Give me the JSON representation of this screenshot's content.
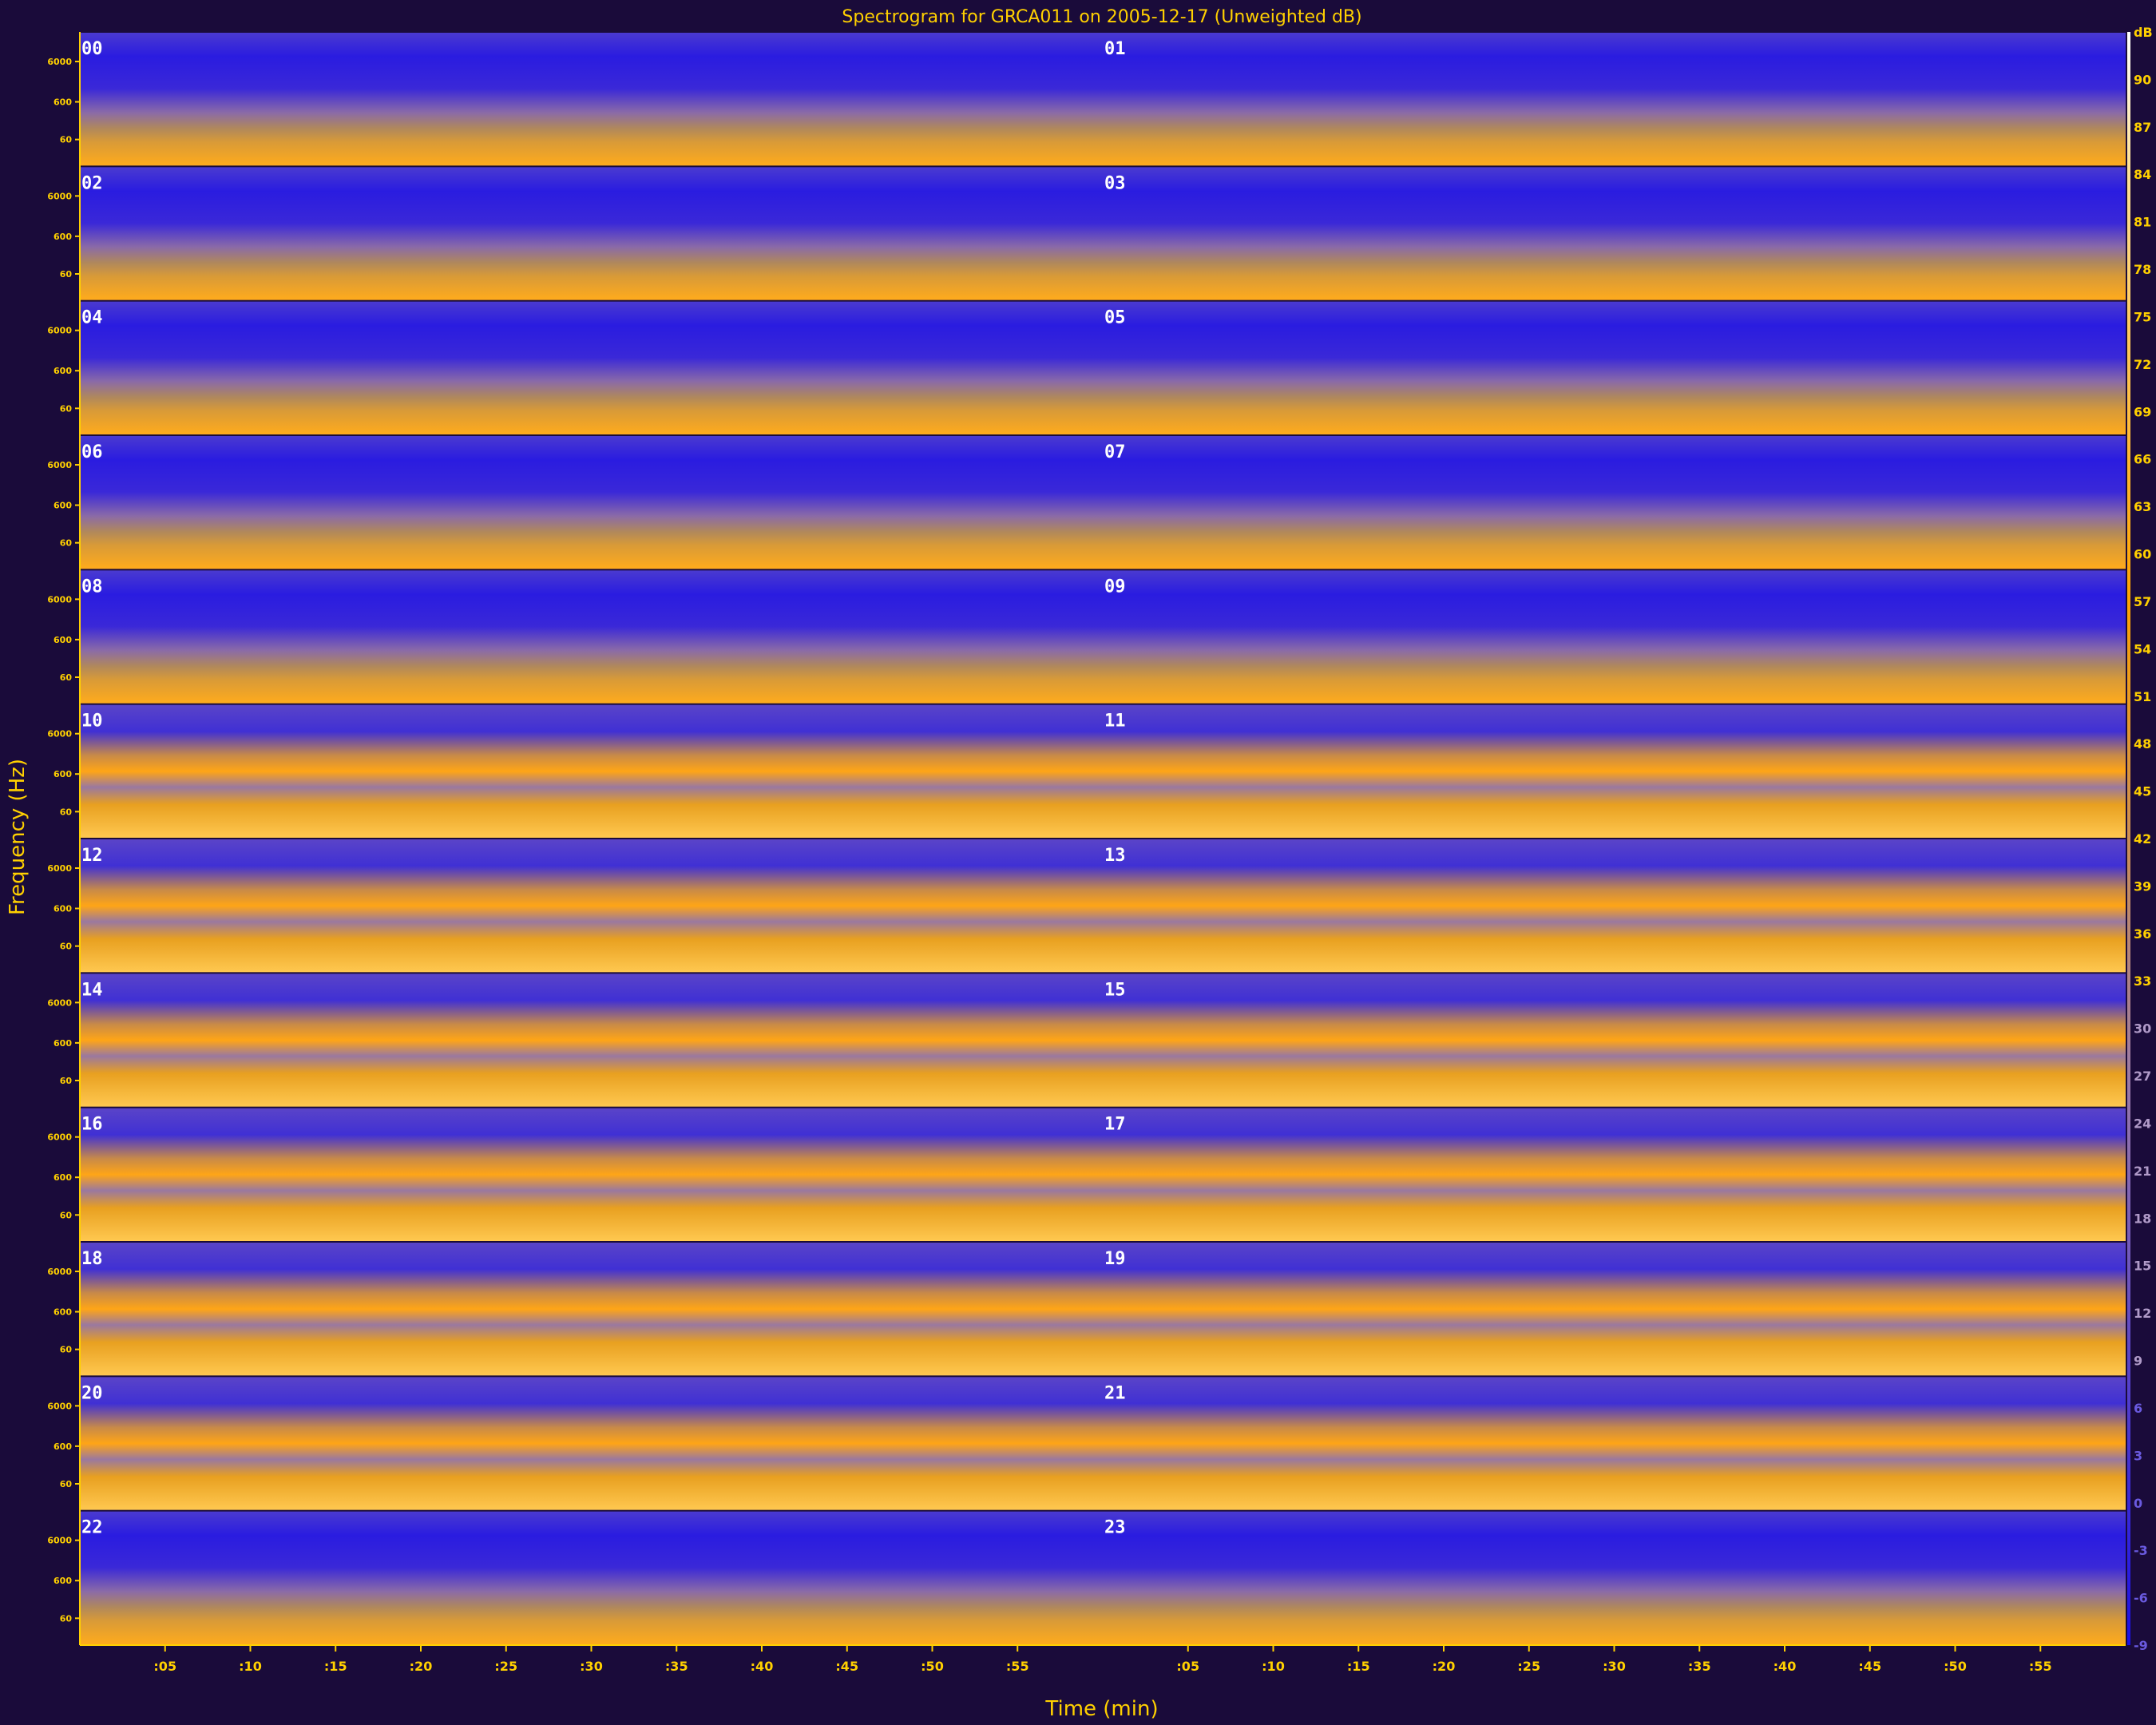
{
  "chart_data": {
    "type": "heatmap",
    "title": "Spectrogram for GRCA011 on 2005-12-17 (Unweighted dB)",
    "xlabel": "Time (min)",
    "ylabel": "Frequency (Hz)",
    "rows": 12,
    "hours": [
      "00",
      "01",
      "02",
      "03",
      "04",
      "05",
      "06",
      "07",
      "08",
      "09",
      "10",
      "11",
      "12",
      "13",
      "14",
      "15",
      "16",
      "17",
      "18",
      "19",
      "20",
      "21",
      "22",
      "23"
    ],
    "x_tick_labels": [
      ":05",
      ":10",
      ":15",
      ":20",
      ":25",
      ":30",
      ":35",
      ":40",
      ":45",
      ":50",
      ":55",
      ":05",
      ":10",
      ":15",
      ":20",
      ":25",
      ":30",
      ":35",
      ":40",
      ":45",
      ":50",
      ":55"
    ],
    "x_tick_minutes": [
      5,
      10,
      15,
      20,
      25,
      30,
      35,
      40,
      45,
      50,
      55
    ],
    "freq_tick_labels": [
      "6000",
      "600",
      "60"
    ],
    "db_scale": {
      "labels": [
        "dB",
        "90",
        "87",
        "84",
        "81",
        "78",
        "75",
        "72",
        "69",
        "66",
        "63",
        "60",
        "57",
        "54",
        "51",
        "48",
        "45",
        "42",
        "39",
        "36",
        "33",
        "30",
        "27",
        "24",
        "21",
        "18",
        "15",
        "12",
        "9",
        "6",
        "3",
        "0",
        "-3",
        "-6",
        "-9"
      ],
      "max": 90,
      "min": -9
    },
    "colormap": {
      "low": "#2a1cdc",
      "mid": "#8a6aa0",
      "high": "#ffa500",
      "peak": "#ffe9a0"
    },
    "grid": false
  }
}
